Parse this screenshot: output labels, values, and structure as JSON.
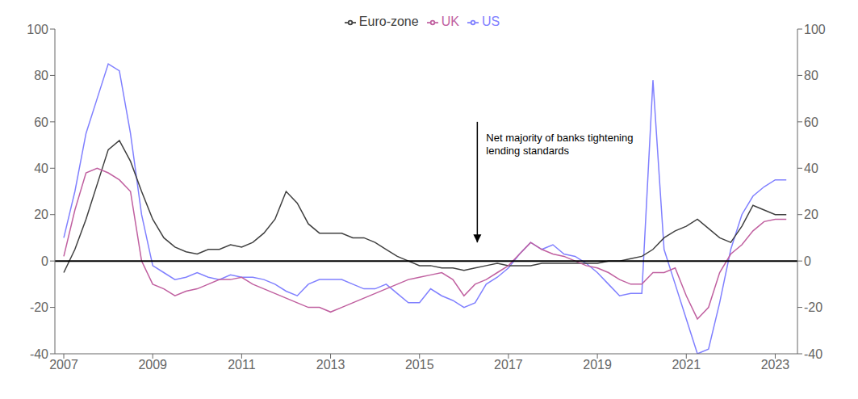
{
  "chart_data": {
    "type": "line",
    "annotations": [
      {
        "text": "Net majority of banks tightening\nlending standards",
        "x": 2016.5,
        "y": 55,
        "arrow": {
          "x": 2016.3,
          "y_from": 60,
          "y_to": 8
        }
      }
    ],
    "hlines": [
      0
    ],
    "x": [
      2007.0,
      2007.25,
      2007.5,
      2007.75,
      2008.0,
      2008.25,
      2008.5,
      2008.75,
      2009.0,
      2009.25,
      2009.5,
      2009.75,
      2010.0,
      2010.25,
      2010.5,
      2010.75,
      2011.0,
      2011.25,
      2011.5,
      2011.75,
      2012.0,
      2012.25,
      2012.5,
      2012.75,
      2013.0,
      2013.25,
      2013.5,
      2013.75,
      2014.0,
      2014.25,
      2014.5,
      2014.75,
      2015.0,
      2015.25,
      2015.5,
      2015.75,
      2016.0,
      2016.25,
      2016.5,
      2016.75,
      2017.0,
      2017.25,
      2017.5,
      2017.75,
      2018.0,
      2018.25,
      2018.5,
      2018.75,
      2019.0,
      2019.25,
      2019.5,
      2019.75,
      2020.0,
      2020.25,
      2020.5,
      2020.75,
      2021.0,
      2021.25,
      2021.5,
      2021.75,
      2022.0,
      2022.25,
      2022.5,
      2022.75,
      2023.0,
      2023.25
    ],
    "series": [
      {
        "name": "US",
        "color": "#8080ff",
        "values": [
          10,
          30,
          55,
          70,
          85,
          82,
          55,
          20,
          -2,
          -5,
          -8,
          -7,
          -5,
          -7,
          -8,
          -6,
          -7,
          -7,
          -8,
          -10,
          -13,
          -15,
          -10,
          -8,
          -8,
          -8,
          -10,
          -12,
          -12,
          -10,
          -14,
          -18,
          -18,
          -12,
          -15,
          -17,
          -20,
          -18,
          -10,
          -7,
          -3,
          3,
          8,
          5,
          7,
          3,
          2,
          -1,
          -5,
          -10,
          -15,
          -14,
          -14,
          78,
          5,
          -10,
          -25,
          -40,
          -38,
          -18,
          5,
          20,
          28,
          32,
          35,
          35
        ]
      },
      {
        "name": "Euro-zone",
        "color": "#404040",
        "values": [
          -5,
          5,
          18,
          33,
          48,
          52,
          43,
          30,
          18,
          10,
          6,
          4,
          3,
          5,
          5,
          7,
          6,
          8,
          12,
          18,
          30,
          25,
          16,
          12,
          12,
          12,
          10,
          10,
          8,
          5,
          2,
          0,
          -2,
          -2,
          -3,
          -3,
          -4,
          -3,
          -2,
          -1,
          -2,
          -2,
          -2,
          -1,
          -1,
          -1,
          -1,
          -1,
          -1,
          0,
          0,
          1,
          2,
          5,
          10,
          13,
          15,
          18,
          14,
          10,
          8,
          15,
          24,
          22,
          20,
          20
        ]
      },
      {
        "name": "UK",
        "color": "#c060a0",
        "values": [
          2,
          22,
          38,
          40,
          38,
          35,
          30,
          0,
          -10,
          -12,
          -15,
          -13,
          -12,
          -10,
          -8,
          -8,
          -7,
          -10,
          -12,
          -14,
          -16,
          -18,
          -20,
          -20,
          -22,
          -20,
          -18,
          -16,
          -14,
          -12,
          -10,
          -8,
          -7,
          -6,
          -5,
          -8,
          -15,
          -10,
          -8,
          -5,
          -2,
          3,
          8,
          5,
          3,
          2,
          0,
          -2,
          -3,
          -5,
          -8,
          -10,
          -10,
          -5,
          -5,
          -3,
          -15,
          -25,
          -20,
          -5,
          3,
          7,
          13,
          17,
          18,
          18
        ]
      }
    ],
    "xlim": [
      2006.8,
      2023.5
    ],
    "xticks": [
      2007,
      2009,
      2011,
      2013,
      2015,
      2017,
      2019,
      2021,
      2023
    ],
    "ylim": [
      -40,
      100
    ],
    "yticks": [
      -40,
      -20,
      0,
      20,
      40,
      60,
      80,
      100
    ],
    "y2lim": [
      -40,
      100
    ],
    "y2ticks": [
      -40,
      -20,
      0,
      20,
      40,
      60,
      80,
      100
    ],
    "grid": false,
    "legend": "top"
  }
}
